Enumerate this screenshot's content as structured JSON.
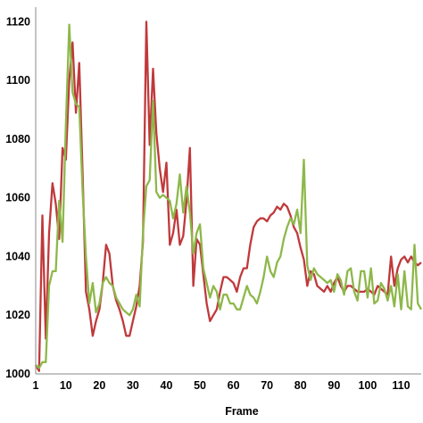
{
  "chart_data": {
    "type": "line",
    "title": "",
    "xlabel": "Frame",
    "ylabel": "",
    "xlim": [
      1,
      116
    ],
    "ylim": [
      1000,
      1125
    ],
    "x_ticks": [
      1,
      10,
      20,
      30,
      40,
      50,
      60,
      70,
      80,
      90,
      100,
      110
    ],
    "y_ticks": [
      1000,
      1020,
      1040,
      1060,
      1080,
      1100,
      1120
    ],
    "grid": false,
    "legend": "none",
    "series": [
      {
        "color": "#c0393b",
        "x": [
          1,
          2,
          3,
          4,
          5,
          6,
          7,
          8,
          9,
          10,
          11,
          12,
          13,
          14,
          15,
          16,
          17,
          18,
          19,
          20,
          21,
          22,
          23,
          24,
          25,
          26,
          27,
          28,
          29,
          30,
          31,
          32,
          33,
          34,
          35,
          36,
          37,
          38,
          39,
          40,
          41,
          42,
          43,
          44,
          45,
          46,
          47,
          48,
          49,
          50,
          51,
          52,
          53,
          54,
          55,
          56,
          57,
          58,
          59,
          60,
          61,
          62,
          63,
          64,
          65,
          66,
          67,
          68,
          69,
          70,
          71,
          72,
          73,
          74,
          75,
          76,
          77,
          78,
          79,
          80,
          81,
          82,
          83,
          84,
          85,
          86,
          87,
          88,
          89,
          90,
          91,
          92,
          93,
          94,
          95,
          96,
          97,
          98,
          99,
          100,
          101,
          102,
          103,
          104,
          105,
          106,
          107,
          108,
          109,
          110,
          111,
          112,
          113,
          114,
          115,
          116
        ],
        "values": [
          1003,
          1001,
          1054,
          1012,
          1048,
          1065,
          1058,
          1046,
          1077,
          1073,
          1100,
          1113,
          1089,
          1106,
          1068,
          1028,
          1022,
          1013,
          1018,
          1022,
          1031,
          1044,
          1041,
          1030,
          1025,
          1022,
          1018,
          1013,
          1013,
          1018,
          1023,
          1030,
          1045,
          1120,
          1078,
          1104,
          1082,
          1070,
          1062,
          1072,
          1044,
          1048,
          1056,
          1044,
          1047,
          1059,
          1077,
          1030,
          1046,
          1044,
          1034,
          1024,
          1018,
          1020,
          1022,
          1028,
          1033,
          1033,
          1032,
          1031,
          1028,
          1033,
          1036,
          1036,
          1044,
          1050,
          1052,
          1053,
          1053,
          1052,
          1054,
          1055,
          1057,
          1056,
          1058,
          1057,
          1054,
          1050,
          1048,
          1043,
          1039,
          1030,
          1035,
          1034,
          1030,
          1029,
          1028,
          1030,
          1028,
          1031,
          1033,
          1030,
          1028,
          1030,
          1030,
          1029,
          1028,
          1028,
          1028,
          1029,
          1028,
          1027,
          1030,
          1029,
          1028,
          1027,
          1040,
          1030,
          1036,
          1039,
          1040,
          1038,
          1040,
          1038,
          1037,
          1038
        ]
      },
      {
        "color": "#8db84a",
        "x": [
          1,
          2,
          3,
          4,
          5,
          6,
          7,
          8,
          9,
          10,
          11,
          12,
          13,
          14,
          15,
          16,
          17,
          18,
          19,
          20,
          21,
          22,
          23,
          24,
          25,
          26,
          27,
          28,
          29,
          30,
          31,
          32,
          33,
          34,
          35,
          36,
          37,
          38,
          39,
          40,
          41,
          42,
          43,
          44,
          45,
          46,
          47,
          48,
          49,
          50,
          51,
          52,
          53,
          54,
          55,
          56,
          57,
          58,
          59,
          60,
          61,
          62,
          63,
          64,
          65,
          66,
          67,
          68,
          69,
          70,
          71,
          72,
          73,
          74,
          75,
          76,
          77,
          78,
          79,
          80,
          81,
          82,
          83,
          84,
          85,
          86,
          87,
          88,
          89,
          90,
          91,
          92,
          93,
          94,
          95,
          96,
          97,
          98,
          99,
          100,
          101,
          102,
          103,
          104,
          105,
          106,
          107,
          108,
          109,
          110,
          111,
          112,
          113,
          114,
          115,
          116
        ],
        "values": [
          1003,
          1002,
          1004,
          1004,
          1030,
          1035,
          1035,
          1059,
          1045,
          1085,
          1119,
          1096,
          1092,
          1091,
          1062,
          1040,
          1024,
          1031,
          1021,
          1024,
          1031,
          1033,
          1031,
          1030,
          1026,
          1024,
          1022,
          1021,
          1020,
          1022,
          1027,
          1023,
          1048,
          1064,
          1066,
          1093,
          1062,
          1060,
          1061,
          1060,
          1059,
          1053,
          1058,
          1068,
          1055,
          1064,
          1055,
          1041,
          1048,
          1051,
          1036,
          1031,
          1026,
          1030,
          1028,
          1022,
          1027,
          1027,
          1024,
          1024,
          1022,
          1022,
          1026,
          1030,
          1027,
          1026,
          1024,
          1028,
          1033,
          1040,
          1035,
          1033,
          1038,
          1040,
          1046,
          1050,
          1053,
          1051,
          1056,
          1048,
          1073,
          1037,
          1032,
          1036,
          1034,
          1033,
          1032,
          1031,
          1032,
          1028,
          1034,
          1032,
          1027,
          1035,
          1036,
          1028,
          1025,
          1035,
          1035,
          1026,
          1036,
          1024,
          1025,
          1031,
          1029,
          1025,
          1030,
          1023,
          1034,
          1022,
          1035,
          1023,
          1022,
          1044,
          1024,
          1022
        ]
      }
    ]
  }
}
